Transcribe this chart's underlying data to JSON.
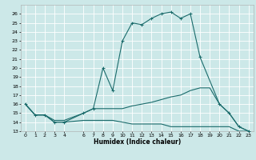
{
  "title": "",
  "xlabel": "Humidex (Indice chaleur)",
  "background_color": "#cce8e8",
  "grid_color": "#ffffff",
  "line_color": "#1a6b6b",
  "xlim": [
    -0.5,
    23.5
  ],
  "ylim": [
    13,
    27
  ],
  "xticks": [
    0,
    1,
    2,
    3,
    4,
    6,
    7,
    8,
    9,
    10,
    11,
    12,
    13,
    14,
    15,
    16,
    17,
    18,
    19,
    20,
    21,
    22,
    23
  ],
  "yticks": [
    13,
    14,
    15,
    16,
    17,
    18,
    19,
    20,
    21,
    22,
    23,
    24,
    25,
    26
  ],
  "series": [
    {
      "x": [
        0,
        1,
        2,
        3,
        4,
        6,
        7,
        8,
        9,
        10,
        11,
        12,
        13,
        14,
        15,
        16,
        17,
        18,
        20,
        21,
        22,
        23
      ],
      "y": [
        16,
        14.8,
        14.8,
        14,
        14,
        15,
        15.5,
        20,
        17.5,
        23,
        25,
        24.8,
        25.5,
        26,
        26.2,
        25.5,
        26,
        21.2,
        16,
        15,
        13.5,
        13
      ],
      "marker": "+"
    },
    {
      "x": [
        0,
        1,
        2,
        3,
        4,
        6,
        7,
        8,
        9,
        10,
        11,
        12,
        13,
        14,
        15,
        16,
        17,
        18,
        19,
        20,
        21,
        22,
        23
      ],
      "y": [
        16,
        14.8,
        14.8,
        14.2,
        14.2,
        15,
        15.5,
        15.5,
        15.5,
        15.5,
        15.8,
        16,
        16.2,
        16.5,
        16.8,
        17,
        17.5,
        17.8,
        17.8,
        16,
        15,
        13.5,
        13
      ],
      "marker": null
    },
    {
      "x": [
        0,
        1,
        2,
        3,
        4,
        6,
        7,
        8,
        9,
        10,
        11,
        12,
        13,
        14,
        15,
        16,
        17,
        18,
        19,
        20,
        21,
        22,
        23
      ],
      "y": [
        16,
        14.8,
        14.8,
        14,
        14,
        14.2,
        14.2,
        14.2,
        14.2,
        14.0,
        13.8,
        13.8,
        13.8,
        13.8,
        13.5,
        13.5,
        13.5,
        13.5,
        13.5,
        13.5,
        13.5,
        13,
        13
      ],
      "marker": null
    }
  ]
}
